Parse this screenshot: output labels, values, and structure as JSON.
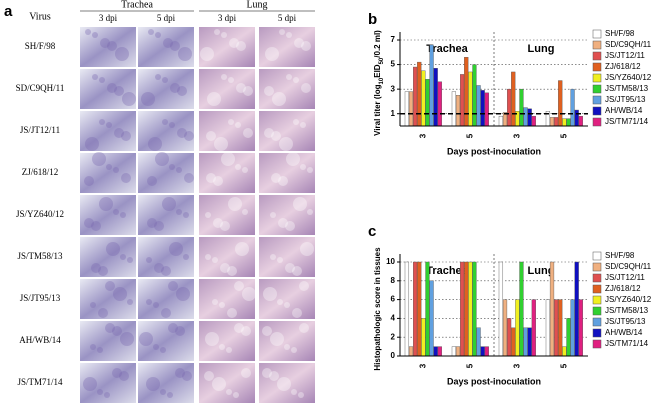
{
  "panel_a": {
    "label": "a",
    "virus_header": "Virus",
    "tissues": [
      "Trachea",
      "Lung"
    ],
    "timepoints": [
      "3 dpi",
      "5 dpi",
      "3 dpi",
      "5 dpi"
    ],
    "viruses": [
      "SH/F/98",
      "SD/C9QH/11",
      "JS/JT12/11",
      "ZJ/618/12",
      "JS/YZ640/12",
      "JS/TM58/13",
      "JS/JT95/13",
      "AH/WB/14",
      "JS/TM71/14"
    ]
  },
  "chart_data": [
    {
      "type": "bar",
      "panel_label": "b",
      "groups": [
        "Trachea",
        "Lung"
      ],
      "categories": [
        "3",
        "5",
        "3",
        "5"
      ],
      "x_label": "Days post-inoculation",
      "y_label": [
        "Viral titer (log",
        "10",
        "EID",
        "50",
        "/0.2 ml)"
      ],
      "ylim": [
        0,
        7
      ],
      "yticks": [
        1,
        3,
        5,
        7
      ],
      "threshold": 1,
      "grid": true,
      "series": [
        {
          "name": "SH/F/98",
          "color": "#ffffff",
          "values": [
            2.8,
            2.8,
            0.8,
            1.2
          ]
        },
        {
          "name": "SD/C9QH/11",
          "color": "#f0b080",
          "values": [
            2.8,
            2.5,
            1.1,
            0.7
          ]
        },
        {
          "name": "JS/JT12/11",
          "color": "#e05050",
          "values": [
            4.8,
            4.2,
            3.0,
            0.7
          ]
        },
        {
          "name": "ZJ/618/12",
          "color": "#e06020",
          "values": [
            5.2,
            5.6,
            4.4,
            3.7
          ]
        },
        {
          "name": "JS/YZ640/12",
          "color": "#f0f020",
          "values": [
            4.5,
            4.4,
            1.2,
            0.6
          ]
        },
        {
          "name": "JS/TM58/13",
          "color": "#30d030",
          "values": [
            3.8,
            5.0,
            3.0,
            0.6
          ]
        },
        {
          "name": "JS/JT95/13",
          "color": "#60a0e0",
          "values": [
            6.6,
            3.3,
            1.5,
            3.0
          ]
        },
        {
          "name": "AH/WB/14",
          "color": "#1010c0",
          "values": [
            4.7,
            2.9,
            1.4,
            1.3
          ]
        },
        {
          "name": "JS/TM71/14",
          "color": "#e02080",
          "values": [
            3.6,
            2.7,
            0.8,
            0.8
          ]
        }
      ]
    },
    {
      "type": "bar",
      "panel_label": "c",
      "groups": [
        "Trachea",
        "Lung"
      ],
      "categories": [
        "3",
        "5",
        "3",
        "5"
      ],
      "x_label": "Days post-inoculation",
      "y_label": [
        "Histopathologic score in tissues"
      ],
      "ylim": [
        0,
        10
      ],
      "yticks": [
        0,
        2,
        4,
        6,
        8,
        10
      ],
      "grid": true,
      "series": [
        {
          "name": "SH/F/98",
          "color": "#ffffff",
          "values": [
            10,
            1,
            10,
            6
          ]
        },
        {
          "name": "SD/C9QH/11",
          "color": "#f0b080",
          "values": [
            1,
            1,
            6,
            10
          ]
        },
        {
          "name": "JS/JT12/11",
          "color": "#e05050",
          "values": [
            10,
            10,
            4,
            6
          ]
        },
        {
          "name": "ZJ/618/12",
          "color": "#e06020",
          "values": [
            10,
            10,
            3,
            6
          ]
        },
        {
          "name": "JS/YZ640/12",
          "color": "#f0f020",
          "values": [
            4,
            10,
            6,
            1
          ]
        },
        {
          "name": "JS/TM58/13",
          "color": "#30d030",
          "values": [
            10,
            10,
            10,
            4
          ]
        },
        {
          "name": "JS/JT95/13",
          "color": "#60a0e0",
          "values": [
            8,
            3,
            3,
            6
          ]
        },
        {
          "name": "AH/WB/14",
          "color": "#1010c0",
          "values": [
            1,
            1,
            3,
            10
          ]
        },
        {
          "name": "JS/TM71/14",
          "color": "#e02080",
          "values": [
            1,
            1,
            6,
            6
          ]
        }
      ]
    }
  ]
}
